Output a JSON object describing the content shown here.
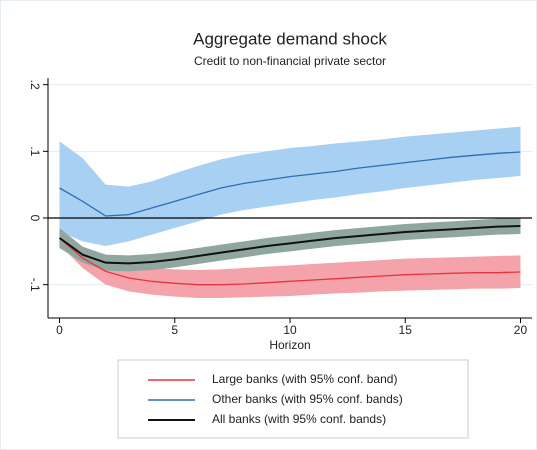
{
  "chart_data": {
    "type": "line_band",
    "title": "Aggregate demand shock",
    "subtitle": "Credit to non-financial private sector",
    "x_label": "Horizon",
    "x": [
      0,
      1,
      2,
      3,
      4,
      5,
      6,
      7,
      8,
      9,
      10,
      11,
      12,
      13,
      14,
      15,
      16,
      17,
      18,
      19,
      20
    ],
    "xlim": [
      -0.5,
      20.5
    ],
    "xticks": [
      0,
      5,
      10,
      15,
      20
    ],
    "ylim": [
      -0.15,
      0.3
    ],
    "yticks": [
      {
        "value": -0.1,
        "label": "-.1"
      },
      0,
      {
        "value": 0.1,
        "label": ".1"
      },
      {
        "value": 0.2,
        "label": ".2"
      }
    ],
    "grid": true,
    "reference_line": 0,
    "series": [
      {
        "name": "Large banks (with 95% conf. band)",
        "color": "#e8343c",
        "band_color": "#f5a3aa",
        "values": [
          -0.03,
          -0.06,
          -0.08,
          -0.09,
          -0.095,
          -0.098,
          -0.1,
          -0.1,
          -0.099,
          -0.097,
          -0.095,
          -0.093,
          -0.091,
          -0.089,
          -0.087,
          -0.085,
          -0.084,
          -0.083,
          -0.082,
          -0.082,
          -0.081
        ],
        "upper": [
          -0.02,
          -0.045,
          -0.06,
          -0.07,
          -0.075,
          -0.077,
          -0.078,
          -0.077,
          -0.075,
          -0.073,
          -0.071,
          -0.069,
          -0.067,
          -0.065,
          -0.063,
          -0.061,
          -0.06,
          -0.059,
          -0.058,
          -0.057,
          -0.056
        ],
        "lower": [
          -0.04,
          -0.075,
          -0.1,
          -0.11,
          -0.115,
          -0.118,
          -0.12,
          -0.12,
          -0.119,
          -0.118,
          -0.117,
          -0.115,
          -0.113,
          -0.112,
          -0.11,
          -0.109,
          -0.108,
          -0.107,
          -0.106,
          -0.106,
          -0.105
        ]
      },
      {
        "name": "Other banks (with 95% conf. bands)",
        "color": "#2f6db5",
        "band_color": "#a8d0f2",
        "values": [
          0.045,
          0.025,
          0.003,
          0.005,
          0.015,
          0.025,
          0.035,
          0.045,
          0.052,
          0.057,
          0.062,
          0.066,
          0.07,
          0.075,
          0.079,
          0.083,
          0.087,
          0.091,
          0.094,
          0.097,
          0.099
        ],
        "upper": [
          0.115,
          0.09,
          0.05,
          0.047,
          0.055,
          0.067,
          0.078,
          0.088,
          0.095,
          0.1,
          0.105,
          0.108,
          0.112,
          0.115,
          0.118,
          0.122,
          0.125,
          0.128,
          0.131,
          0.134,
          0.137
        ],
        "lower": [
          -0.02,
          -0.035,
          -0.042,
          -0.035,
          -0.025,
          -0.015,
          -0.005,
          0.005,
          0.012,
          0.017,
          0.022,
          0.027,
          0.031,
          0.036,
          0.04,
          0.045,
          0.049,
          0.053,
          0.057,
          0.06,
          0.063
        ]
      },
      {
        "name": "All banks (with 95% conf. bands)",
        "color": "#111111",
        "band_color": "#8fa79f",
        "values": [
          -0.03,
          -0.055,
          -0.067,
          -0.068,
          -0.066,
          -0.062,
          -0.057,
          -0.052,
          -0.047,
          -0.042,
          -0.038,
          -0.034,
          -0.03,
          -0.027,
          -0.024,
          -0.021,
          -0.019,
          -0.017,
          -0.015,
          -0.013,
          -0.012
        ],
        "upper": [
          -0.015,
          -0.043,
          -0.055,
          -0.056,
          -0.054,
          -0.05,
          -0.045,
          -0.04,
          -0.035,
          -0.03,
          -0.026,
          -0.022,
          -0.018,
          -0.015,
          -0.012,
          -0.009,
          -0.007,
          -0.005,
          -0.003,
          -0.001,
          0.0
        ],
        "lower": [
          -0.045,
          -0.067,
          -0.079,
          -0.08,
          -0.078,
          -0.074,
          -0.069,
          -0.064,
          -0.059,
          -0.054,
          -0.05,
          -0.046,
          -0.042,
          -0.039,
          -0.036,
          -0.033,
          -0.031,
          -0.029,
          -0.027,
          -0.025,
          -0.024
        ]
      }
    ]
  }
}
